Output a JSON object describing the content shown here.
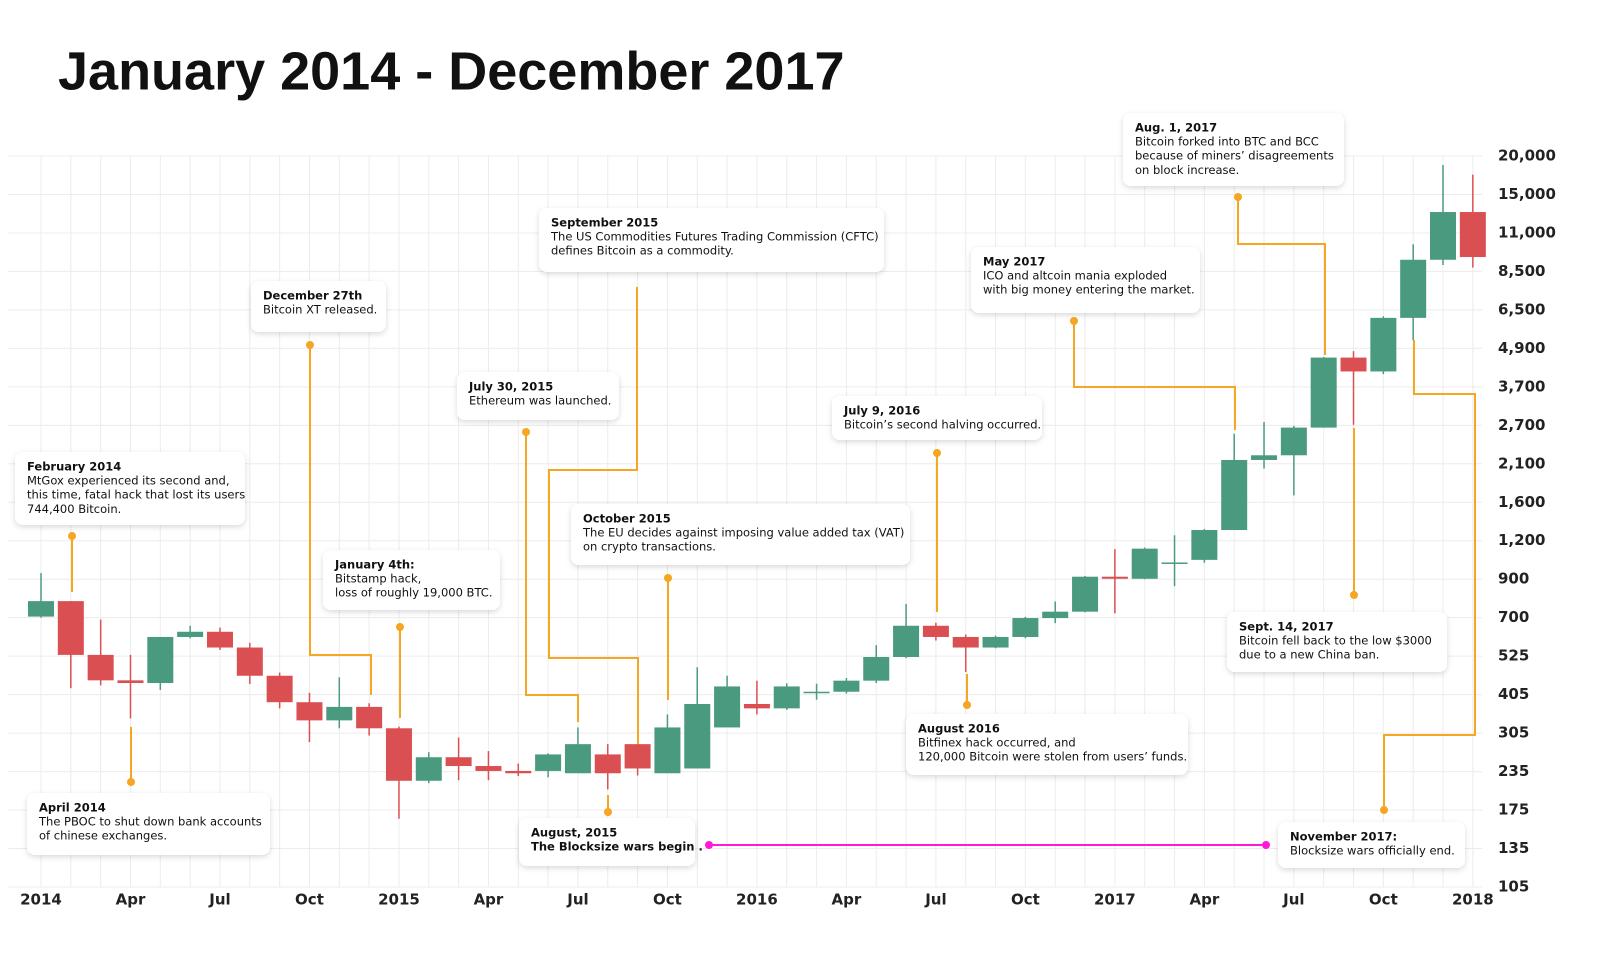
{
  "chart_data": {
    "type": "candlestick",
    "title": "January 2014 - December 2017",
    "categories": [
      "2014",
      null,
      null,
      "Apr",
      null,
      null,
      "Jul",
      null,
      null,
      "Oct",
      null,
      null,
      "2015",
      null,
      null,
      "Apr",
      null,
      null,
      "Jul",
      null,
      null,
      "Oct",
      null,
      null,
      "2016",
      null,
      null,
      "Apr",
      null,
      null,
      "Jul",
      null,
      null,
      "Oct",
      null,
      null,
      "2017",
      null,
      null,
      "Apr",
      null,
      null,
      "Jul",
      null,
      null,
      "Oct",
      null,
      null,
      "2018"
    ],
    "open": [
      705,
      780,
      530,
      446,
      438,
      606,
      630,
      560,
      460,
      383,
      335,
      370,
      316,
      219,
      259,
      244,
      236,
      236,
      232,
      264,
      283,
      232,
      240,
      318,
      378,
      366,
      413,
      413,
      445,
      522,
      659,
      606,
      560,
      606,
      698,
      728,
      917,
      903,
      1020,
      1040,
      1300,
      2153,
      2220,
      2660,
      4581,
      4140,
      6130,
      9190,
      13020
    ],
    "high": [
      942,
      780,
      690,
      530,
      606,
      659,
      650,
      580,
      470,
      410,
      455,
      380,
      320,
      268,
      296,
      270,
      248,
      266,
      318,
      283,
      248,
      350,
      487,
      460,
      445,
      437,
      436,
      453,
      570,
      766,
      674,
      617,
      612,
      704,
      778,
      922,
      1127,
      1140,
      1250,
      1310,
      2556,
      2775,
      2690,
      4600,
      4800,
      6200,
      10200,
      18700,
      17400
    ],
    "low": [
      700,
      423,
      431,
      340,
      418,
      600,
      550,
      435,
      366,
      287,
      316,
      300,
      165,
      215,
      220,
      220,
      227,
      225,
      261,
      205,
      228,
      235,
      316,
      350,
      350,
      362,
      390,
      408,
      438,
      518,
      590,
      472,
      557,
      600,
      672,
      725,
      720,
      900,
      860,
      1018,
      1300,
      2030,
      1680,
      2660,
      2710,
      4060,
      5200,
      8870,
      8720
    ],
    "close": [
      780,
      530,
      446,
      438,
      606,
      630,
      560,
      460,
      383,
      335,
      370,
      316,
      219,
      259,
      244,
      236,
      232,
      264,
      283,
      232,
      240,
      318,
      378,
      428,
      366,
      428,
      413,
      445,
      522,
      659,
      606,
      560,
      606,
      698,
      728,
      917,
      903,
      1131,
      1020,
      1300,
      2153,
      2220,
      2660,
      4581,
      4140,
      6130,
      9190,
      13020,
      9360
    ],
    "up_color": "#4a9a80",
    "down_color": "#da4f51",
    "ylim": [
      105,
      20000
    ],
    "yticks": [
      105,
      135,
      175,
      235,
      305,
      405,
      525,
      700,
      900,
      {
        "value": 1200,
        "label": "1,200"
      },
      {
        "value": 1600,
        "label": "1,600"
      },
      {
        "value": 2100,
        "label": "2,100"
      },
      {
        "value": 2700,
        "label": "2,700"
      },
      {
        "value": 3700,
        "label": "3,700"
      },
      {
        "value": 4900,
        "label": "4,900"
      },
      {
        "value": 6500,
        "label": "6,500"
      },
      {
        "value": 8500,
        "label": "8,500"
      },
      {
        "value": 11000,
        "label": "11,000"
      },
      {
        "value": 15000,
        "label": "15,000"
      },
      {
        "value": 20000,
        "label": "20,000"
      }
    ],
    "grid": true,
    "annotations": [
      {
        "title": "February 2014",
        "lines": [
          "MtGox experienced its second and,",
          "this time, fatal hack that lost its users",
          "744,400 Bitcoin."
        ]
      },
      {
        "title": "April 2014",
        "lines": [
          "The PBOC to shut down bank accounts",
          "of chinese exchanges."
        ]
      },
      {
        "title": "December 27th",
        "lines": [
          "Bitcoin XT released."
        ]
      },
      {
        "title": "January 4th:",
        "lines": [
          "Bitstamp hack,",
          "loss of roughly 19,000 BTC."
        ]
      },
      {
        "title": "July 30, 2015",
        "lines": [
          "Ethereum was launched."
        ]
      },
      {
        "title": "September 2015",
        "lines": [
          "The US Commodities Futures Trading Commission (CFTC)",
          "defines Bitcoin as a commodity."
        ]
      },
      {
        "title": "October 2015",
        "lines": [
          "The EU decides against imposing value added tax (VAT)",
          "on crypto transactions."
        ]
      },
      {
        "title": "August, 2015",
        "lines": [
          "The Blocksize wars begin ."
        ]
      },
      {
        "title": "July 9, 2016",
        "lines": [
          "Bitcoin’s second halving occurred."
        ]
      },
      {
        "title": "August 2016",
        "lines": [
          "Bitfinex hack occurred, and",
          "120,000 Bitcoin were stolen from users’ funds."
        ]
      },
      {
        "title": "May 2017",
        "lines": [
          "ICO and altcoin mania exploded",
          "with big money entering the market."
        ]
      },
      {
        "title": "Aug. 1, 2017",
        "lines": [
          "Bitcoin forked into BTC and BCC",
          "because of miners’ disagreements",
          "on block increase."
        ]
      },
      {
        "title": "Sept. 14, 2017",
        "lines": [
          "Bitcoin fell back to the low $3000",
          "due to a new China ban."
        ]
      },
      {
        "title": "November 2017:",
        "lines": [
          "Blocksize wars officially end."
        ]
      }
    ]
  }
}
